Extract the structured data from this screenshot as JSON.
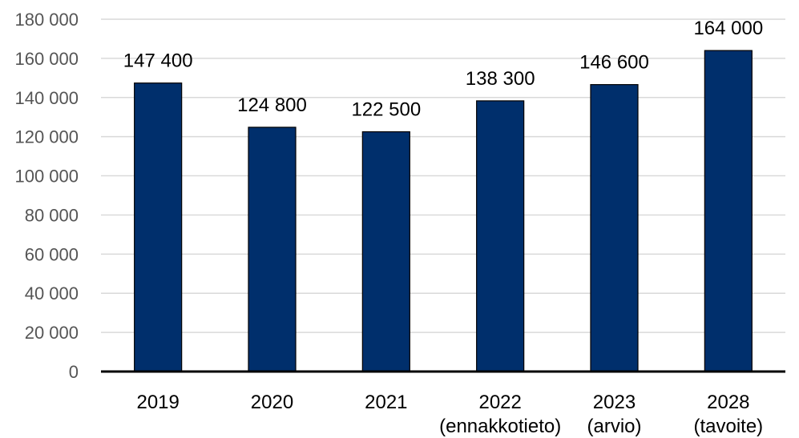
{
  "chart_data": {
    "type": "bar",
    "categories": [
      [
        "2019"
      ],
      [
        "2020"
      ],
      [
        "2021"
      ],
      [
        "2022",
        "(ennakkotieto)"
      ],
      [
        "2023",
        "(arvio)"
      ],
      [
        "2028",
        "(tavoite)"
      ]
    ],
    "values": [
      147400,
      124800,
      122500,
      138300,
      146600,
      164000
    ],
    "data_labels": [
      "147 400",
      "124 800",
      "122 500",
      "138 300",
      "146 600",
      "164 000"
    ],
    "y_ticks": [
      0,
      20000,
      40000,
      60000,
      80000,
      100000,
      120000,
      140000,
      160000,
      180000
    ],
    "y_tick_labels": [
      "0",
      "20 000",
      "40 000",
      "60 000",
      "80 000",
      "100 000",
      "120 000",
      "140 000",
      "160 000",
      "180 000"
    ],
    "ylim": [
      0,
      180000
    ],
    "grid": true,
    "legend": "none",
    "colors": {
      "bar": "#002F6C",
      "bar_stroke": "#000000",
      "grid": "#D9D9D9",
      "axis": "#000000"
    }
  }
}
